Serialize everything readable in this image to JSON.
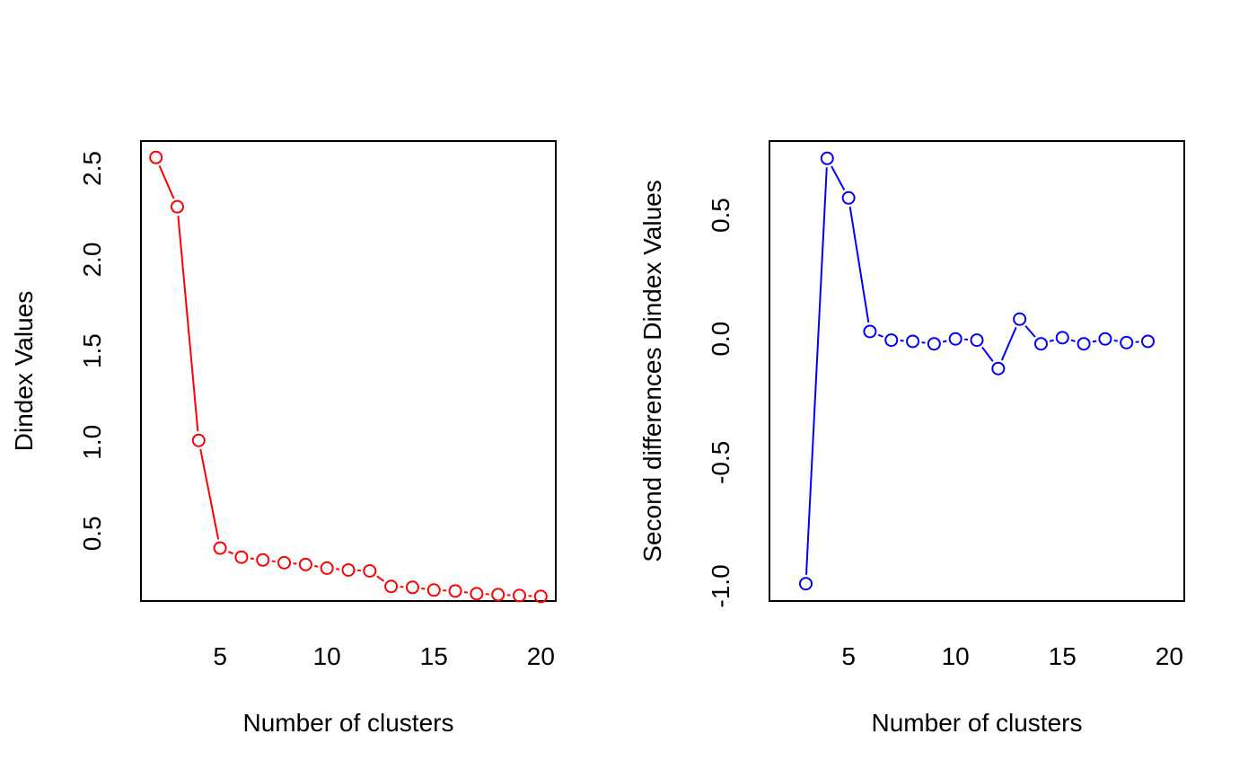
{
  "chart_data": [
    {
      "type": "line",
      "xlabel": "Number of clusters",
      "ylabel": "Dindex Values",
      "color": "#ff0000",
      "xlim": [
        1.3,
        20.7
      ],
      "ylim": [
        0.13,
        2.65
      ],
      "x_ticks": [
        5,
        10,
        15,
        20
      ],
      "y_ticks": [
        0.5,
        1.0,
        1.5,
        2.0,
        2.5
      ],
      "y_tick_labels": [
        "0.5",
        "1.0",
        "1.5",
        "2.0",
        "2.5"
      ],
      "grid": false,
      "series": [
        {
          "x": [
            2,
            3,
            4,
            5,
            6,
            7,
            8,
            9,
            10,
            11,
            12,
            13,
            14,
            15,
            16,
            17,
            18,
            19,
            20
          ],
          "values": [
            2.56,
            2.29,
            1.01,
            0.42,
            0.37,
            0.355,
            0.34,
            0.33,
            0.31,
            0.3,
            0.295,
            0.21,
            0.205,
            0.19,
            0.185,
            0.17,
            0.165,
            0.16,
            0.155
          ]
        }
      ]
    },
    {
      "type": "line",
      "xlabel": "Number of clusters",
      "ylabel": "Second differences Dindex Values",
      "color": "#0000ff",
      "xlim": [
        1.3,
        20.7
      ],
      "ylim": [
        -1.06,
        0.8
      ],
      "x_ticks": [
        5,
        10,
        15,
        20
      ],
      "y_ticks": [
        -1.0,
        -0.5,
        0.0,
        0.5
      ],
      "y_tick_labels": [
        "-1.0",
        "-0.5",
        "0.0",
        "0.5"
      ],
      "grid": false,
      "series": [
        {
          "x": [
            3,
            4,
            5,
            6,
            7,
            8,
            9,
            10,
            11,
            12,
            13,
            14,
            15,
            16,
            17,
            18,
            19
          ],
          "values": [
            -0.99,
            0.73,
            0.57,
            0.03,
            -0.005,
            -0.01,
            -0.02,
            0.0,
            -0.005,
            -0.12,
            0.08,
            -0.02,
            0.005,
            -0.02,
            0.0,
            -0.015,
            -0.01
          ]
        }
      ]
    }
  ]
}
